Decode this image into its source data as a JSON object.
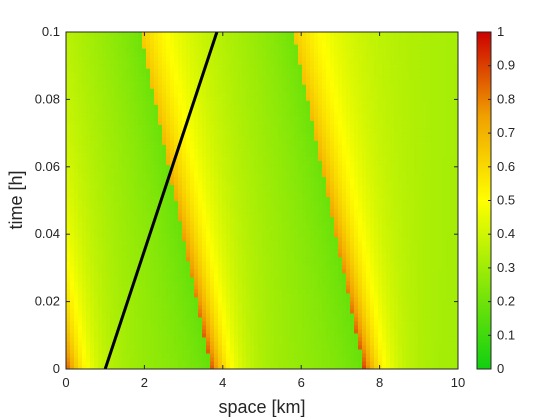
{
  "chart_data": {
    "type": "heatmap",
    "title": "",
    "xlabel": "space [km]",
    "ylabel": "time [h]",
    "xlim": [
      0,
      10
    ],
    "ylim": [
      0,
      0.1
    ],
    "x_ticks": [
      "0",
      "2",
      "4",
      "6",
      "8",
      "10"
    ],
    "y_ticks": [
      "0",
      "0.02",
      "0.04",
      "0.06",
      "0.08",
      "0.1"
    ],
    "colorbar": {
      "range": [
        0,
        1
      ],
      "ticks": [
        "0",
        "0.1",
        "0.2",
        "0.3",
        "0.4",
        "0.5",
        "0.6",
        "0.7",
        "0.8",
        "0.9",
        "1"
      ],
      "colormap": [
        "#10d010",
        "#ffff00",
        "#e07000",
        "#cc0000"
      ]
    },
    "trajectory": {
      "color": "#000000",
      "points": [
        [
          1.0,
          0.0
        ],
        [
          3.85,
          0.1
        ]
      ]
    },
    "density_field": {
      "description_free": true,
      "background": 0.3,
      "shocks_at_t0": [
        0.0,
        3.7,
        7.6
      ],
      "shock_speed_km_per_h": -18,
      "peak_density": 0.9
    }
  }
}
